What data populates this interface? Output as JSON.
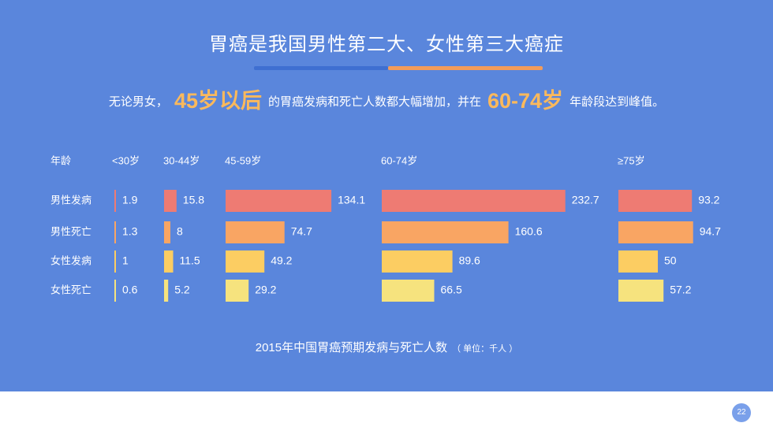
{
  "title": "胃癌是我国男性第二大、女性第三大癌症",
  "subtitle": {
    "part1": "无论男女，",
    "highlight1": "45岁以后",
    "part2": "的胃癌发病和死亡人数都大幅增加，并在",
    "highlight2": "60-74岁",
    "part3": "年龄段达到峰值。"
  },
  "caption": {
    "main": "2015年中国胃癌预期发病与死亡人数",
    "unit": "（ 单位：千人 ）"
  },
  "page_number": "22",
  "colors": {
    "background": "#5a86dc",
    "male_incidence": "#ee7b73",
    "male_death": "#f9a563",
    "female_incidence": "#fccd62",
    "female_death": "#f6e37e",
    "highlight": "#fbb95c"
  },
  "chart_data": {
    "type": "bar",
    "orientation": "horizontal",
    "row_header": "年龄",
    "categories": [
      "<30岁",
      "30-44岁",
      "45-59岁",
      "60-74岁",
      "≥75岁"
    ],
    "series": [
      {
        "name": "男性发病",
        "values": [
          1.9,
          15.8,
          134.1,
          232.7,
          93.2
        ]
      },
      {
        "name": "男性死亡",
        "values": [
          1.3,
          8,
          74.7,
          160.6,
          94.7
        ]
      },
      {
        "name": "女性发病",
        "values": [
          1,
          11.5,
          49.2,
          89.6,
          50
        ]
      },
      {
        "name": "女性死亡",
        "values": [
          0.6,
          5.2,
          29.2,
          66.5,
          57.2
        ]
      }
    ],
    "unit": "千人",
    "title": "2015年中国胃癌预期发病与死亡人数"
  }
}
